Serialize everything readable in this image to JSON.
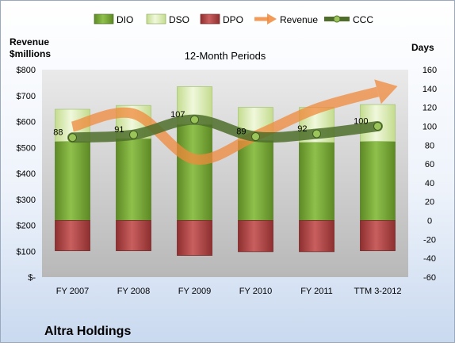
{
  "company": "Altra Holdings",
  "subtitle": "12-Month Periods",
  "left_axis_title": [
    "Revenue",
    "$millions"
  ],
  "right_axis_title": "Days",
  "chart_data": {
    "type": "bar",
    "title": "12-Month Periods",
    "categories": [
      "FY 2007",
      "FY 2008",
      "FY 2009",
      "FY 2010",
      "FY 2011",
      "TTM 3-2012"
    ],
    "right_axis": {
      "label": "Days",
      "ylim": [
        -60,
        160
      ],
      "ticks": [
        -60,
        -40,
        -20,
        0,
        20,
        40,
        60,
        80,
        100,
        120,
        140,
        160
      ]
    },
    "left_axis": {
      "label": "Revenue $millions",
      "ylim": [
        0,
        800
      ],
      "ticks": [
        "$-",
        "$100",
        "$200",
        "$300",
        "$400",
        "$500",
        "$600",
        "$700",
        "$800"
      ],
      "tick_values": [
        0,
        100,
        200,
        300,
        400,
        500,
        600,
        700,
        800
      ]
    },
    "series": [
      {
        "name": "DIO",
        "type": "stacked-bar",
        "axis": "right",
        "color": "#77a43a",
        "values": [
          84,
          87,
          102,
          85,
          83,
          84
        ]
      },
      {
        "name": "DSO",
        "type": "stacked-bar",
        "axis": "right",
        "color": "#dceab8",
        "values": [
          34,
          35,
          40,
          35,
          37,
          39
        ]
      },
      {
        "name": "DPO",
        "type": "stacked-bar-negative",
        "axis": "right",
        "color": "#b84a4a",
        "values": [
          -32,
          -32,
          -37,
          -33,
          -33,
          -32
        ]
      },
      {
        "name": "Revenue",
        "type": "arrow-line",
        "axis": "left",
        "color": "#f08a3c",
        "values": [
          580,
          630,
          455,
          545,
          650,
          715
        ]
      },
      {
        "name": "CCC",
        "type": "line",
        "axis": "right",
        "color": "#4e6e2a",
        "values": [
          88,
          91,
          107,
          89,
          92,
          100
        ]
      }
    ],
    "data_labels": [
      "88",
      "91",
      "107",
      "89",
      "92",
      "100"
    ],
    "legend": "top",
    "grid": false
  }
}
